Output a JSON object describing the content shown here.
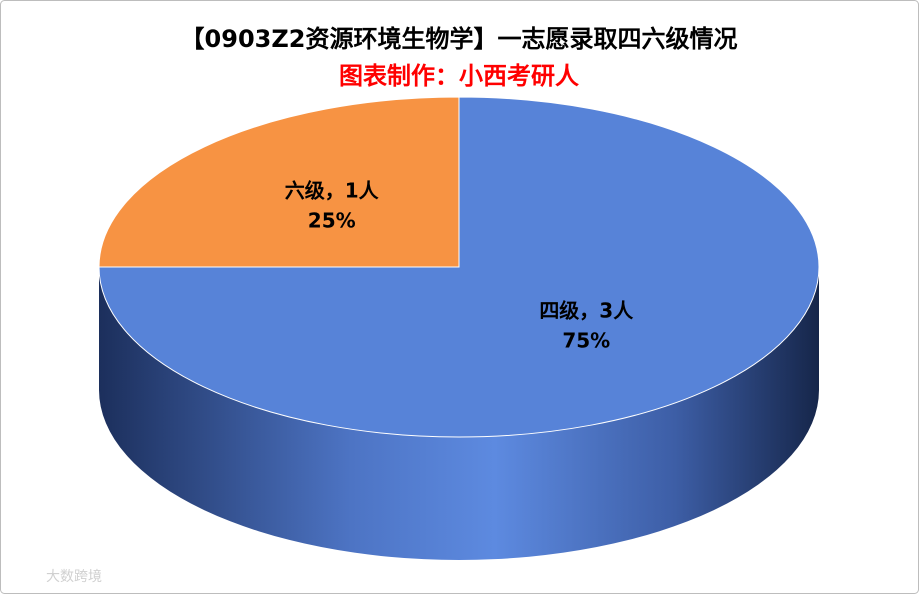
{
  "chart_data": {
    "type": "pie3d",
    "title": "【0903Z2资源环境生物学】一志愿录取四六级情况",
    "subtitle": "图表制作：小西考研人",
    "values": [
      3,
      1
    ],
    "value_labels": [
      "四级，3人",
      "六级，1人"
    ],
    "percentages": [
      75,
      25
    ],
    "percentage_labels": [
      "75%",
      "25%"
    ],
    "colors": [
      "#5783d8",
      "#f79343"
    ],
    "watermark": "大数跨境"
  }
}
